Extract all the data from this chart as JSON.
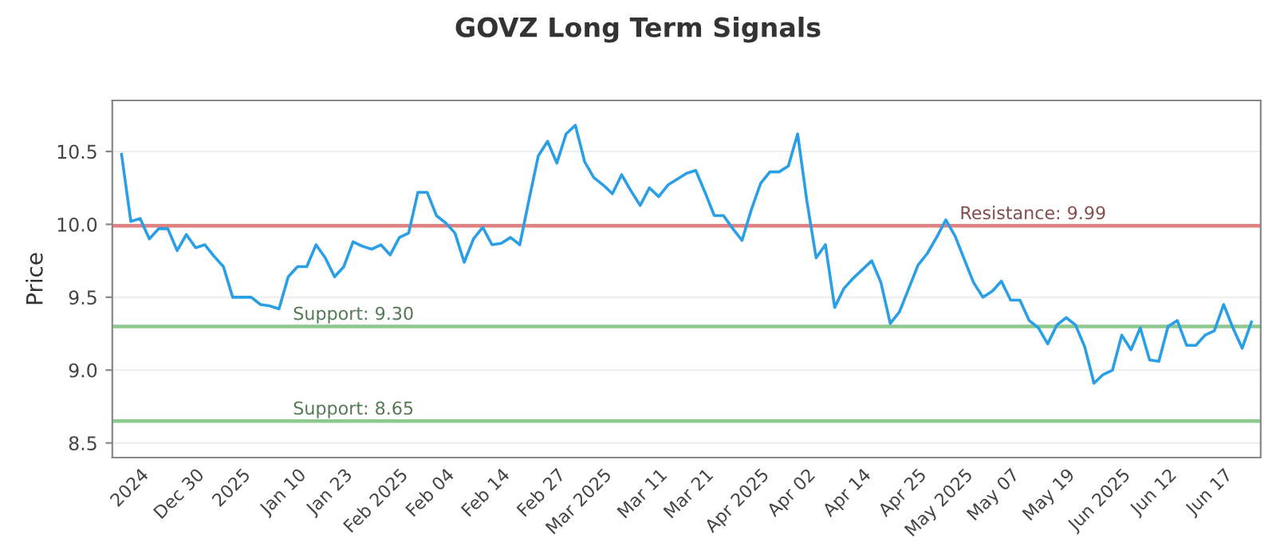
{
  "chart_data": {
    "type": "line",
    "title": "GOVZ Long Term Signals",
    "ylabel": "Price",
    "categories": [
      null,
      null,
      "2024",
      null,
      null,
      null,
      null,
      null,
      "Dec 30",
      null,
      null,
      null,
      null,
      "2025",
      null,
      null,
      null,
      null,
      null,
      "Jan 10",
      null,
      null,
      null,
      null,
      "Jan 23",
      null,
      null,
      null,
      null,
      null,
      "Feb 2025",
      null,
      null,
      null,
      null,
      "Feb 04",
      null,
      null,
      null,
      null,
      null,
      "Feb 14",
      null,
      null,
      null,
      null,
      null,
      "Feb 27",
      null,
      null,
      null,
      null,
      "Mar 2025",
      null,
      null,
      null,
      null,
      null,
      "Mar 11",
      null,
      null,
      null,
      null,
      "Mar 21",
      null,
      null,
      null,
      null,
      null,
      "Apr 2025",
      null,
      null,
      null,
      null,
      "Apr 02",
      null,
      null,
      null,
      null,
      null,
      "Apr 14",
      null,
      null,
      null,
      null,
      null,
      "Apr 25",
      null,
      null,
      null,
      null,
      "May 2025",
      null,
      null,
      null,
      null,
      "May 07",
      null,
      null,
      null,
      null,
      null,
      "May 19",
      null,
      null,
      null,
      null,
      null,
      "Jun 2025",
      null,
      null,
      null,
      null,
      "Jun 12",
      null,
      null,
      null,
      null,
      null,
      "Jun 17",
      null,
      null,
      null
    ],
    "series": [
      {
        "color": "#2b9fe6",
        "values": [
          10.48,
          10.02,
          10.04,
          9.9,
          9.97,
          9.97,
          9.82,
          9.93,
          9.84,
          9.86,
          9.78,
          9.71,
          9.5,
          9.5,
          9.5,
          9.45,
          9.44,
          9.42,
          9.64,
          9.71,
          9.71,
          9.86,
          9.77,
          9.64,
          9.71,
          9.88,
          9.85,
          9.83,
          9.86,
          9.79,
          9.91,
          9.94,
          10.22,
          10.22,
          10.06,
          10.01,
          9.94,
          9.74,
          9.9,
          9.98,
          9.86,
          9.87,
          9.91,
          9.86,
          10.17,
          10.47,
          10.57,
          10.42,
          10.62,
          10.68,
          10.43,
          10.32,
          10.27,
          10.21,
          10.34,
          10.23,
          10.13,
          10.25,
          10.19,
          10.27,
          10.31,
          10.35,
          10.37,
          10.22,
          10.06,
          10.06,
          9.97,
          9.89,
          10.1,
          10.28,
          10.36,
          10.36,
          10.4,
          10.62,
          10.16,
          9.77,
          9.86,
          9.43,
          9.56,
          9.63,
          9.69,
          9.75,
          9.6,
          9.32,
          9.4,
          9.56,
          9.72,
          9.8,
          9.91,
          10.03,
          9.92,
          9.76,
          9.6,
          9.5,
          9.54,
          9.61,
          9.48,
          9.48,
          9.34,
          9.29,
          9.18,
          9.31,
          9.36,
          9.31,
          9.16,
          8.91,
          8.97,
          9.0,
          9.24,
          9.14,
          9.29,
          9.07,
          9.06,
          9.3,
          9.34,
          9.17,
          9.17,
          9.24,
          9.27,
          9.45,
          9.29,
          9.15,
          9.33
        ]
      }
    ],
    "ylim": [
      8.4,
      10.85
    ],
    "yticks": [
      8.5,
      {
        "value": 9,
        "label": "9.0"
      },
      9.5,
      {
        "value": 10,
        "label": "10.0"
      },
      10.5
    ],
    "grid": "y",
    "ref_lines": [
      {
        "axis": "y",
        "value": 9.99,
        "label": "Resistance: 9.99",
        "color": "#e08080"
      },
      {
        "axis": "y",
        "value": 9.3,
        "label": "Support: 9.30",
        "color": "#8dc98d"
      },
      {
        "axis": "y",
        "value": 8.65,
        "label": "Support: 8.65",
        "color": "#8dc98d"
      }
    ]
  }
}
